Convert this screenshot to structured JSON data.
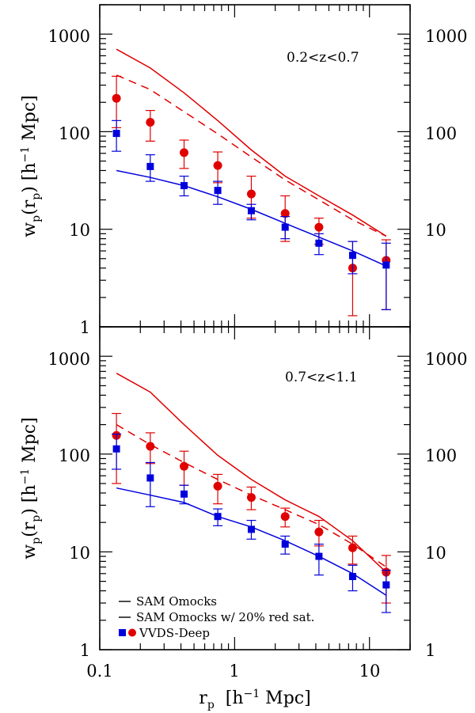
{
  "colors": {
    "red": "#e00000",
    "blue": "#0000dd",
    "axis": "#000000"
  },
  "chart_data": [
    {
      "type": "line",
      "panel": "top",
      "annotation": "0.2<z<0.7",
      "xlabel": "r_p [h^-1 Mpc]",
      "ylabel": "w_p(r_p) [h^-1 Mpc]",
      "xscale": "log",
      "yscale": "log",
      "xlim": [
        0.1,
        20
      ],
      "ylim": [
        1,
        2000
      ],
      "yticks": [
        1,
        10,
        100,
        1000
      ],
      "series": [
        {
          "name": "SAM Omocks (red)",
          "kind": "line",
          "style": "solid",
          "color": "red",
          "x": [
            0.133,
            0.237,
            0.422,
            0.75,
            1.33,
            2.37,
            4.22,
            7.5,
            13.3
          ],
          "y": [
            700,
            450,
            250,
            130,
            65,
            35,
            22,
            14,
            8.5
          ]
        },
        {
          "name": "SAM Omocks w/ 20% red sat.",
          "kind": "line",
          "style": "dashed",
          "color": "red",
          "x": [
            0.133,
            0.237,
            0.422,
            0.75,
            1.33,
            2.37,
            4.22,
            7.5,
            13.3
          ],
          "y": [
            380,
            270,
            160,
            95,
            55,
            32,
            20,
            12.5,
            8.5
          ]
        },
        {
          "name": "SAM Omocks (blue)",
          "kind": "line",
          "style": "solid",
          "color": "blue",
          "x": [
            0.133,
            0.237,
            0.422,
            0.75,
            1.33,
            2.37,
            4.22,
            7.5,
            13.3
          ],
          "y": [
            40,
            34,
            28,
            21.5,
            16,
            11.5,
            8.3,
            6,
            4.2
          ]
        },
        {
          "name": "VVDS-Deep (red)",
          "kind": "points",
          "marker": "circle",
          "color": "red",
          "x": [
            0.133,
            0.237,
            0.422,
            0.75,
            1.33,
            2.37,
            4.22,
            7.5,
            13.3
          ],
          "y": [
            220,
            125,
            61,
            45,
            23,
            14.5,
            10.5,
            4,
            4.8
          ],
          "ylo": [
            110,
            80,
            42,
            30,
            13,
            7.5,
            7,
            1.3,
            1.5
          ],
          "yhi": [
            370,
            165,
            82,
            62,
            35,
            22,
            13,
            7.5,
            7.8
          ]
        },
        {
          "name": "VVDS-Deep (blue)",
          "kind": "points",
          "marker": "square",
          "color": "blue",
          "x": [
            0.133,
            0.237,
            0.422,
            0.75,
            1.33,
            2.37,
            4.22,
            7.5,
            13.3
          ],
          "y": [
            96,
            44,
            28,
            25,
            15.5,
            10.5,
            7.2,
            5.4,
            4.3
          ],
          "ylo": [
            63,
            31,
            22,
            18,
            12.5,
            8,
            5.5,
            3.5,
            1.5
          ],
          "yhi": [
            130,
            58,
            35,
            31,
            18,
            13.5,
            9,
            7.5,
            7.2
          ]
        }
      ]
    },
    {
      "type": "line",
      "panel": "bottom",
      "annotation": "0.7<z<1.1",
      "xlabel": "r_p [h^-1 Mpc]",
      "ylabel": "w_p(r_p) [h^-1 Mpc]",
      "xscale": "log",
      "yscale": "log",
      "xlim": [
        0.1,
        20
      ],
      "ylim": [
        1,
        2000
      ],
      "yticks": [
        1,
        10,
        100,
        1000
      ],
      "xticks": [
        0.1,
        1,
        10
      ],
      "series": [
        {
          "name": "SAM Omocks (red)",
          "kind": "line",
          "style": "solid",
          "color": "red",
          "x": [
            0.133,
            0.237,
            0.422,
            0.75,
            1.33,
            2.37,
            4.22,
            7.5,
            13.3
          ],
          "y": [
            670,
            430,
            200,
            97,
            55,
            34,
            23,
            13,
            6.2
          ]
        },
        {
          "name": "SAM Omocks w/ 20% red sat.",
          "kind": "line",
          "style": "dashed",
          "color": "red",
          "x": [
            0.133,
            0.237,
            0.422,
            0.75,
            1.33,
            2.37,
            4.22,
            7.5,
            13.3
          ],
          "y": [
            200,
            125,
            82,
            55,
            38,
            27,
            19,
            12,
            7
          ]
        },
        {
          "name": "SAM Omocks (blue)",
          "kind": "line",
          "style": "solid",
          "color": "blue",
          "x": [
            0.133,
            0.237,
            0.422,
            0.75,
            1.33,
            2.37,
            4.22,
            7.5,
            13.3
          ],
          "y": [
            45,
            38,
            32,
            23,
            18,
            13,
            9,
            6,
            3.6
          ]
        },
        {
          "name": "VVDS-Deep (red)",
          "kind": "points",
          "marker": "circle",
          "color": "red",
          "x": [
            0.133,
            0.237,
            0.422,
            0.75,
            1.33,
            2.37,
            4.22,
            7.5,
            13.3
          ],
          "y": [
            155,
            120,
            75,
            47,
            36,
            23,
            16,
            11,
            6.2
          ],
          "ylo": [
            50,
            80,
            48,
            31,
            27,
            18,
            11.5,
            7.5,
            3
          ],
          "yhi": [
            260,
            165,
            107,
            62,
            46,
            28,
            21,
            14.5,
            9.2
          ]
        },
        {
          "name": "VVDS-Deep (blue)",
          "kind": "points",
          "marker": "square",
          "color": "blue",
          "x": [
            0.133,
            0.237,
            0.422,
            0.75,
            1.33,
            2.37,
            4.22,
            7.5,
            13.3
          ],
          "y": [
            113,
            57,
            39,
            23,
            17,
            12,
            9,
            5.6,
            4.6
          ],
          "ylo": [
            70,
            29,
            31,
            18.5,
            13.5,
            9.5,
            5.8,
            4,
            2.4
          ],
          "yhi": [
            160,
            82,
            48,
            27.5,
            21,
            14.5,
            12,
            7.3,
            6.5
          ]
        }
      ],
      "legend": {
        "placement": "bottom-left",
        "entries": [
          {
            "label": "SAM Omocks",
            "style": "solid"
          },
          {
            "label": "SAM Omocks w/ 20% red sat.",
            "style": "dashed"
          },
          {
            "label": "VVDS-Deep",
            "style": "markers"
          }
        ]
      }
    }
  ],
  "labels": {
    "y_tick_top": [
      "1000",
      "100",
      "10",
      "1"
    ],
    "y_tick_bottom": [
      "1000",
      "100",
      "10",
      "1"
    ],
    "x_tick": [
      "0.1",
      "1",
      "10"
    ],
    "x_title_main": "r",
    "x_title_sub": "p",
    "x_title_units": "[h",
    "x_title_exp": "−1",
    "x_title_tail": " Mpc]",
    "y_title_main": "w",
    "y_title_sub1": "p",
    "y_title_paren": "(r",
    "y_title_sub2": "p",
    "y_title_units": ")  [h",
    "y_title_exp": "−1",
    "y_title_tail": " Mpc]"
  }
}
